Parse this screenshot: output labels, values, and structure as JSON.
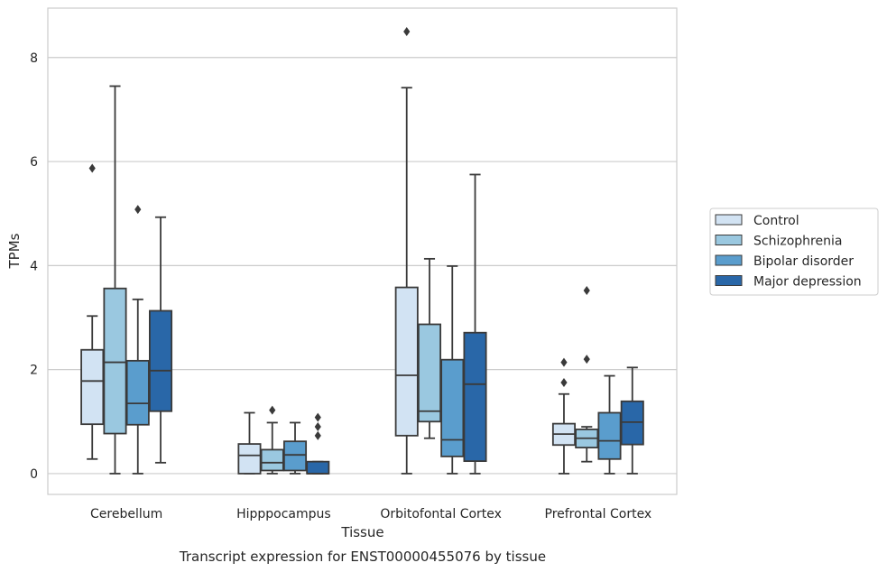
{
  "chart_data": {
    "type": "box",
    "xlabel": "Tissue",
    "ylabel": "TPMs",
    "caption": "Transcript expression for ENST00000455076 by tissue",
    "categories": [
      "Cerebellum",
      "Hipppocampus",
      "Orbitofontal Cortex",
      "Prefrontal Cortex"
    ],
    "ylim": [
      -0.4,
      8.95
    ],
    "yticks": [
      0,
      2,
      4,
      6,
      8
    ],
    "grid": "horizontal",
    "legend_position": "right",
    "series": [
      {
        "name": "Control",
        "color": "#d2e3f3",
        "boxes": [
          {
            "min": 0.28,
            "q1": 0.95,
            "median": 1.78,
            "q3": 2.38,
            "max": 3.03,
            "outliers": [
              5.87
            ]
          },
          {
            "min": 0.0,
            "q1": 0.0,
            "median": 0.35,
            "q3": 0.57,
            "max": 1.17,
            "outliers": []
          },
          {
            "min": 0.0,
            "q1": 0.73,
            "median": 1.89,
            "q3": 3.58,
            "max": 7.42,
            "outliers": [
              8.5
            ]
          },
          {
            "min": 0.0,
            "q1": 0.55,
            "median": 0.76,
            "q3": 0.96,
            "max": 1.53,
            "outliers": [
              1.75,
              2.14
            ]
          }
        ]
      },
      {
        "name": "Schizophrenia",
        "color": "#9ac8e0",
        "boxes": [
          {
            "min": 0.0,
            "q1": 0.77,
            "median": 2.14,
            "q3": 3.56,
            "max": 7.45,
            "outliers": []
          },
          {
            "min": 0.0,
            "q1": 0.06,
            "median": 0.21,
            "q3": 0.46,
            "max": 0.98,
            "outliers": [
              1.22
            ]
          },
          {
            "min": 0.68,
            "q1": 1.0,
            "median": 1.2,
            "q3": 2.87,
            "max": 4.13,
            "outliers": []
          },
          {
            "min": 0.23,
            "q1": 0.5,
            "median": 0.68,
            "q3": 0.85,
            "max": 0.9,
            "outliers": [
              2.2,
              3.52
            ]
          }
        ]
      },
      {
        "name": "Bipolar disorder",
        "color": "#5a9dcd",
        "boxes": [
          {
            "min": 0.0,
            "q1": 0.94,
            "median": 1.35,
            "q3": 2.17,
            "max": 3.35,
            "outliers": [
              5.08
            ]
          },
          {
            "min": 0.0,
            "q1": 0.06,
            "median": 0.36,
            "q3": 0.62,
            "max": 0.98,
            "outliers": []
          },
          {
            "min": 0.0,
            "q1": 0.33,
            "median": 0.65,
            "q3": 2.19,
            "max": 3.99,
            "outliers": []
          },
          {
            "min": 0.0,
            "q1": 0.28,
            "median": 0.63,
            "q3": 1.17,
            "max": 1.88,
            "outliers": []
          }
        ]
      },
      {
        "name": "Major depression",
        "color": "#2967a8",
        "boxes": [
          {
            "min": 0.21,
            "q1": 1.2,
            "median": 1.98,
            "q3": 3.13,
            "max": 4.93,
            "outliers": []
          },
          {
            "min": 0.0,
            "q1": 0.0,
            "median": 0.0,
            "q3": 0.23,
            "max": 0.23,
            "outliers": [
              0.73,
              0.9,
              1.08
            ]
          },
          {
            "min": 0.0,
            "q1": 0.24,
            "median": 1.72,
            "q3": 2.71,
            "max": 5.75,
            "outliers": []
          },
          {
            "min": 0.0,
            "q1": 0.56,
            "median": 0.99,
            "q3": 1.39,
            "max": 2.04,
            "outliers": []
          }
        ]
      }
    ]
  }
}
